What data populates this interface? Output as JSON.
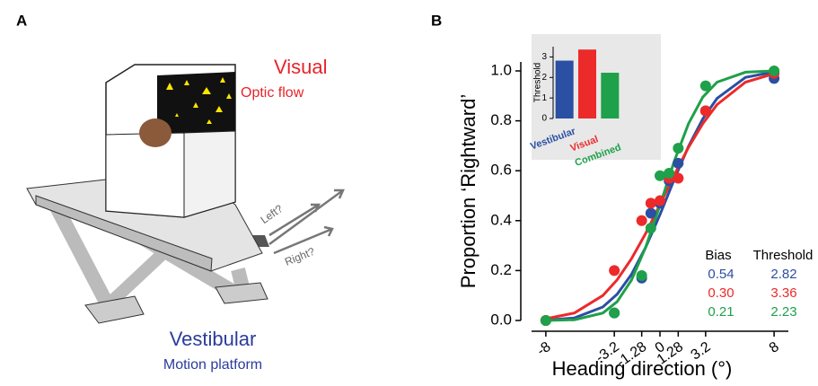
{
  "panel_labels": [
    "A",
    "B"
  ],
  "panel_a": {
    "visual": "Visual",
    "optic_flow": "Optic flow",
    "vestibular": "Vestibular",
    "motion_platform": "Motion platform",
    "left": "Left?",
    "right": "Right?"
  },
  "chart_data": [
    {
      "type": "scatter",
      "xlabel": "Heading direction (°)",
      "ylabel": "Proportion ‘Rightward’",
      "x": [
        -8,
        -3.2,
        -1.28,
        -0.64,
        0,
        0.64,
        1.28,
        3.2,
        8
      ],
      "xlim": [
        -9,
        9
      ],
      "xticks": [
        -8,
        -3.2,
        -1.28,
        0,
        1.28,
        3.2,
        8
      ],
      "ylim": [
        0,
        1
      ],
      "yticks": [
        {
          "value": 0,
          "label": "0.0"
        },
        0.2,
        0.4,
        0.6,
        0.8,
        {
          "value": 1,
          "label": "1.0"
        }
      ],
      "curve_x": [
        -8,
        -6,
        -4,
        -3,
        -2,
        -1,
        0,
        1,
        2,
        3,
        4,
        6,
        8
      ],
      "series": [
        {
          "color": "#2b4fa3",
          "values": [
            0.0,
            0.03,
            0.17,
            0.43,
            0.47,
            0.56,
            0.63,
            0.84,
            0.97
          ],
          "curve_values": [
            0.001,
            0.01,
            0.054,
            0.105,
            0.184,
            0.293,
            0.424,
            0.565,
            0.698,
            0.808,
            0.89,
            0.974,
            0.996
          ]
        },
        {
          "color": "#ec2a2a",
          "values": [
            0.0,
            0.2,
            0.4,
            0.47,
            0.48,
            0.57,
            0.57,
            0.84,
            0.99
          ],
          "curve_values": [
            0.007,
            0.03,
            0.1,
            0.163,
            0.247,
            0.349,
            0.464,
            0.582,
            0.694,
            0.789,
            0.865,
            0.955,
            0.989
          ]
        },
        {
          "color": "#1fa04a",
          "values": [
            0.0,
            0.03,
            0.18,
            0.37,
            0.58,
            0.59,
            0.69,
            0.94,
            1.0
          ],
          "curve_values": [
            0.0,
            0.003,
            0.03,
            0.075,
            0.161,
            0.294,
            0.462,
            0.638,
            0.789,
            0.895,
            0.955,
            0.995,
            1.0
          ]
        }
      ],
      "stats_table": {
        "header": [
          "Bias",
          "Threshold"
        ],
        "rows": [
          [
            "0.54",
            "2.82"
          ],
          [
            "0.30",
            "3.36"
          ],
          [
            "0.21",
            "2.23"
          ]
        ]
      }
    },
    {
      "type": "bar",
      "ylabel": "Threshold",
      "categories": [
        "Vestibular",
        "Visual",
        "Combined"
      ],
      "values": [
        2.82,
        3.36,
        2.23
      ],
      "colors": [
        "#2b4fa3",
        "#ec2a2a",
        "#1fa04a"
      ],
      "ylim": [
        0,
        3.5
      ],
      "yticks": [
        0,
        1,
        2,
        3
      ]
    }
  ]
}
